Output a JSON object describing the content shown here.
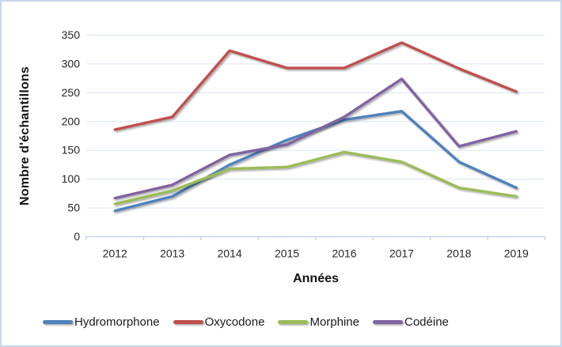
{
  "chart_data": {
    "type": "line",
    "title": "",
    "xlabel": "Années",
    "ylabel": "Nombre d'échantillons",
    "categories": [
      "2012",
      "2013",
      "2014",
      "2015",
      "2016",
      "2017",
      "2018",
      "2019"
    ],
    "series": [
      {
        "name": "Hydromorphone",
        "color": "#4F81BD",
        "values": [
          45,
          70,
          125,
          168,
          203,
          218,
          130,
          85
        ]
      },
      {
        "name": "Oxycodone",
        "color": "#C0504D",
        "values": [
          186,
          208,
          323,
          293,
          293,
          337,
          292,
          252
        ]
      },
      {
        "name": "Morphine",
        "color": "#9BBB59",
        "values": [
          57,
          80,
          118,
          121,
          147,
          130,
          85,
          70
        ]
      },
      {
        "name": "Codéine",
        "color": "#8064A2",
        "values": [
          67,
          90,
          142,
          160,
          208,
          274,
          157,
          183
        ]
      }
    ],
    "ylim": [
      0,
      350
    ],
    "yticks": [
      0,
      50,
      100,
      150,
      200,
      250,
      300,
      350
    ],
    "grid": true,
    "legend_position": "bottom"
  }
}
